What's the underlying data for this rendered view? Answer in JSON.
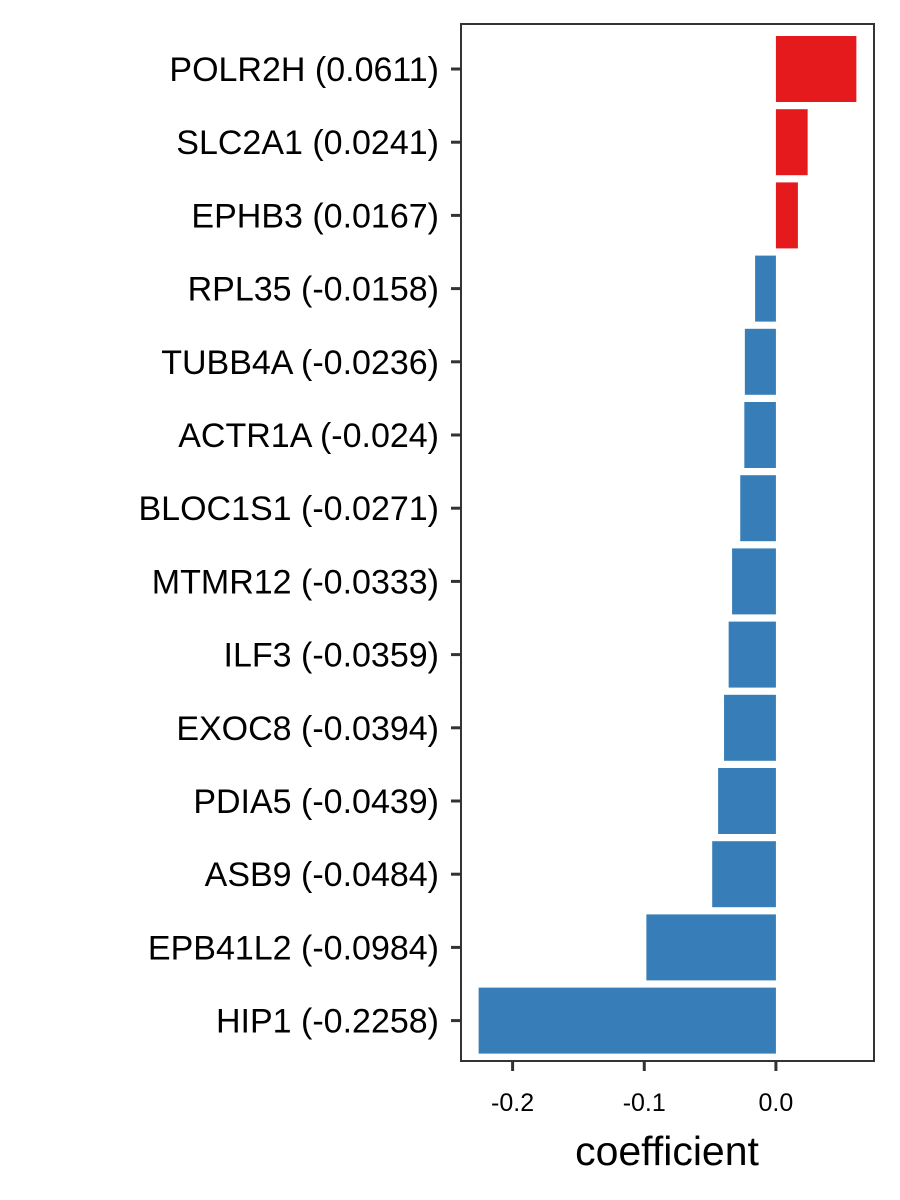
{
  "chart_data": {
    "type": "bar",
    "orientation": "horizontal",
    "categories": [
      "POLR2H (0.0611)",
      "SLC2A1 (0.0241)",
      "EPHB3 (0.0167)",
      "RPL35 (-0.0158)",
      "TUBB4A (-0.0236)",
      "ACTR1A (-0.024)",
      "BLOC1S1 (-0.0271)",
      "MTMR12 (-0.0333)",
      "ILF3 (-0.0359)",
      "EXOC8 (-0.0394)",
      "PDIA5 (-0.0439)",
      "ASB9 (-0.0484)",
      "EPB41L2 (-0.0984)",
      "HIP1 (-0.2258)"
    ],
    "values": [
      0.0611,
      0.0241,
      0.0167,
      -0.0158,
      -0.0236,
      -0.024,
      -0.0271,
      -0.0333,
      -0.0359,
      -0.0394,
      -0.0439,
      -0.0484,
      -0.0984,
      -0.2258
    ],
    "xlabel": "coefficient",
    "ylabel": "",
    "xlim": [
      -0.2392,
      0.0745
    ],
    "xticks": [
      -0.2,
      -0.1,
      0.0
    ],
    "xtick_labels": [
      "-0.2",
      "-0.1",
      "0.0"
    ],
    "grid": false,
    "legend": "none",
    "colors": {
      "positive": "#E41A1C",
      "negative": "#377EB8",
      "frame": "#333333",
      "tick": "#333333"
    }
  }
}
